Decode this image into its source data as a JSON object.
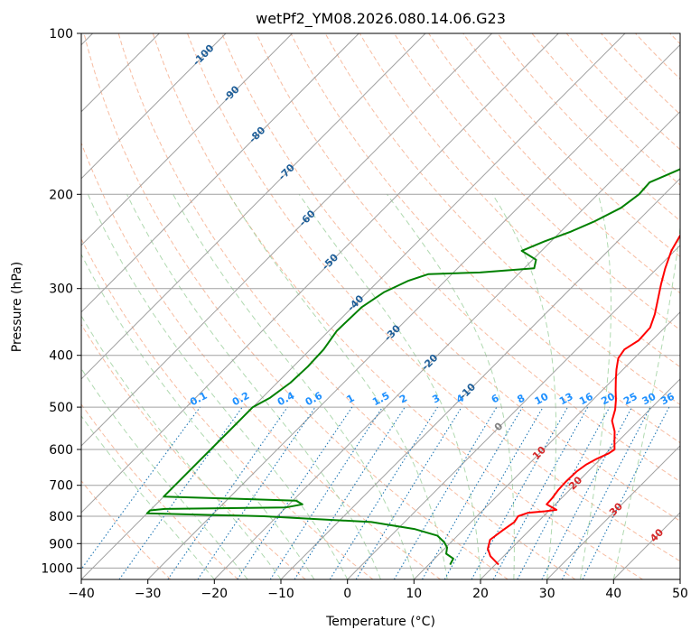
{
  "chart_data": {
    "type": "line",
    "title": "wetPf2_YM08.2026.080.14.06.G23",
    "xlabel": "Temperature (°C)",
    "ylabel": "Pressure (hPa)",
    "xlim": [
      -40,
      50
    ],
    "ylim": [
      1050,
      100
    ],
    "y_scale": "log",
    "grid": true,
    "x_ticks": [
      "−40",
      "−30",
      "−20",
      "−10",
      "0",
      "10",
      "20",
      "30",
      "40",
      "50"
    ],
    "x_tick_values": [
      -40,
      -30,
      -20,
      -10,
      0,
      10,
      20,
      30,
      40,
      50
    ],
    "y_ticks": [
      "100",
      "200",
      "300",
      "400",
      "500",
      "600",
      "700",
      "800",
      "900",
      "1000"
    ],
    "y_tick_values": [
      100,
      200,
      300,
      400,
      500,
      600,
      700,
      800,
      900,
      1000
    ],
    "skew_isotherm_labels": [
      {
        "text": "-100",
        "t": -100,
        "p": 110
      },
      {
        "text": "-90",
        "t": -90,
        "p": 130
      },
      {
        "text": "-80",
        "t": -80,
        "p": 155
      },
      {
        "text": "-70",
        "t": -70,
        "p": 182
      },
      {
        "text": "-60",
        "t": -60,
        "p": 222
      },
      {
        "text": "-50",
        "t": -50,
        "p": 268
      },
      {
        "text": "-40",
        "t": -40,
        "p": 320
      },
      {
        "text": "-30",
        "t": -30,
        "p": 364
      },
      {
        "text": "-20",
        "t": -20,
        "p": 413
      },
      {
        "text": "-10",
        "t": -10,
        "p": 468
      },
      {
        "text": "0",
        "t": 0,
        "p": 545
      },
      {
        "text": "10",
        "t": 10,
        "p": 610
      },
      {
        "text": "20",
        "t": 20,
        "p": 695
      },
      {
        "text": "30",
        "t": 30,
        "p": 778
      },
      {
        "text": "40",
        "t": 40,
        "p": 870
      }
    ],
    "mixing_ratio_labels": [
      "0.1",
      "0.2",
      "0.4",
      "0.6",
      "1",
      "1.5",
      "2",
      "3",
      "4",
      "6",
      "8",
      "10",
      "13",
      "16",
      "20",
      "25",
      "30",
      "36"
    ],
    "mixing_ratio_values": [
      0.1,
      0.2,
      0.4,
      0.6,
      1,
      1.5,
      2,
      3,
      4,
      6,
      8,
      10,
      13,
      16,
      20,
      25,
      30,
      36
    ],
    "series": [
      {
        "color": "#ff0000",
        "points": [
          [
            20.5,
            985
          ],
          [
            18.0,
            950
          ],
          [
            16.5,
            920
          ],
          [
            15.5,
            885
          ],
          [
            16.0,
            850
          ],
          [
            16.5,
            820
          ],
          [
            16.2,
            800
          ],
          [
            17.2,
            788
          ],
          [
            19.5,
            783
          ],
          [
            21.0,
            778
          ],
          [
            20.0,
            770
          ],
          [
            18.7,
            760
          ],
          [
            18.6,
            740
          ],
          [
            18.3,
            715
          ],
          [
            18.2,
            690
          ],
          [
            18.3,
            660
          ],
          [
            18.7,
            640
          ],
          [
            19.4,
            625
          ],
          [
            20.4,
            610
          ],
          [
            20.7,
            600
          ],
          [
            19.5,
            580
          ],
          [
            18.0,
            555
          ],
          [
            16.0,
            530
          ],
          [
            14.8,
            505
          ],
          [
            13.5,
            485
          ],
          [
            12.0,
            465
          ],
          [
            10.5,
            445
          ],
          [
            9.0,
            425
          ],
          [
            7.6,
            405
          ],
          [
            7.2,
            390
          ],
          [
            8.0,
            375
          ],
          [
            7.8,
            355
          ],
          [
            6.5,
            335
          ],
          [
            4.8,
            315
          ],
          [
            3.0,
            295
          ],
          [
            1.2,
            275
          ],
          [
            -0.5,
            255
          ],
          [
            -1.7,
            235
          ],
          [
            -2.7,
            215
          ],
          [
            -3.7,
            195
          ],
          [
            -4.4,
            180
          ],
          [
            -4.5,
            172
          ],
          [
            -3.3,
            162
          ],
          [
            -0.6,
            152
          ],
          [
            2.5,
            145
          ],
          [
            5.5,
            138
          ],
          [
            6.5,
            130
          ],
          [
            7.5,
            122
          ],
          [
            9.5,
            115
          ],
          [
            11.5,
            108
          ],
          [
            12.8,
            103
          ],
          [
            13.7,
            100
          ]
        ]
      },
      {
        "color": "#008000",
        "points": [
          [
            13.2,
            985
          ],
          [
            12.8,
            960
          ],
          [
            11.0,
            940
          ],
          [
            10.2,
            915
          ],
          [
            9.0,
            895
          ],
          [
            7.0,
            870
          ],
          [
            2.5,
            845
          ],
          [
            -5.0,
            820
          ],
          [
            -22.0,
            800
          ],
          [
            -40.0,
            790
          ],
          [
            -40.0,
            780
          ],
          [
            -38.0,
            775
          ],
          [
            -20.0,
            770
          ],
          [
            -18.0,
            760
          ],
          [
            -19.5,
            748
          ],
          [
            -40.0,
            735
          ],
          [
            -40.0,
            520
          ],
          [
            -40.0,
            500
          ],
          [
            -38.8,
            480
          ],
          [
            -38.0,
            450
          ],
          [
            -37.8,
            420
          ],
          [
            -38.0,
            390
          ],
          [
            -38.8,
            360
          ],
          [
            -38.6,
            325
          ],
          [
            -37.5,
            305
          ],
          [
            -35.5,
            290
          ],
          [
            -33.5,
            282
          ],
          [
            -26.0,
            280
          ],
          [
            -18.5,
            275
          ],
          [
            -19.5,
            265
          ],
          [
            -23.0,
            255
          ],
          [
            -21.0,
            245
          ],
          [
            -18.5,
            235
          ],
          [
            -16.5,
            225
          ],
          [
            -14.5,
            212
          ],
          [
            -13.8,
            200
          ],
          [
            -14.0,
            190
          ],
          [
            -11.5,
            180
          ],
          [
            -9.5,
            170
          ],
          [
            -8.0,
            160
          ],
          [
            -7.2,
            150
          ],
          [
            -7.3,
            140
          ],
          [
            -7.8,
            132
          ],
          [
            -7.0,
            125
          ],
          [
            -5.2,
            120
          ],
          [
            -3.2,
            115
          ],
          [
            -2.0,
            108
          ],
          [
            -1.0,
            100
          ]
        ]
      }
    ]
  },
  "colors": {
    "temperature": "#ff0000",
    "dewpoint": "#008000",
    "isotherm": "#a0a0a0",
    "isobar": "#a0a0a0",
    "dry_adiabat": "#f4a582",
    "moist_adiabat": "#9ccf9c",
    "mixing_ratio": "#1f77b4",
    "label_blue": "#1f5f99",
    "label_bright_blue": "#1e90ff",
    "label_red": "#d62728",
    "label_gray": "#808080"
  }
}
